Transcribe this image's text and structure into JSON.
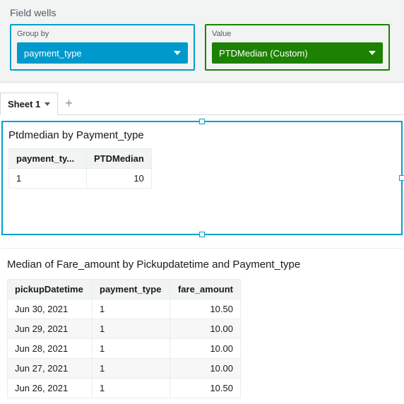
{
  "fieldWells": {
    "title": "Field wells",
    "groupBy": {
      "label": "Group by",
      "chip": "payment_type",
      "border_color": "#00a1c9",
      "chip_color": "#0099cc"
    },
    "value": {
      "label": "Value",
      "chip": "PTDMedian (Custom)",
      "border_color": "#1d8102",
      "chip_color": "#1d8102"
    }
  },
  "sheets": {
    "active": "Sheet 1",
    "add_icon": "+"
  },
  "visual1": {
    "title": "Ptdmedian by Payment_type",
    "selected": true,
    "selection_color": "#00a1c9",
    "table": {
      "columns": [
        "payment_ty...",
        "PTDMedian"
      ],
      "rows": [
        [
          "1",
          "10"
        ]
      ],
      "align": [
        "left",
        "right"
      ]
    }
  },
  "visual2": {
    "title": "Median of Fare_amount by Pickupdatetime and Payment_type",
    "table": {
      "columns": [
        "pickupDatetime",
        "payment_type",
        "fare_amount"
      ],
      "align": [
        "left",
        "left",
        "right"
      ],
      "rows": [
        [
          "Jun 30, 2021",
          "1",
          "10.50"
        ],
        [
          "Jun 29, 2021",
          "1",
          "10.00"
        ],
        [
          "Jun 28, 2021",
          "1",
          "10.00"
        ],
        [
          "Jun 27, 2021",
          "1",
          "10.00"
        ],
        [
          "Jun 26, 2021",
          "1",
          "10.50"
        ]
      ]
    }
  },
  "colors": {
    "panel_bg": "#f2f3f3",
    "border": "#d5dbdb"
  }
}
